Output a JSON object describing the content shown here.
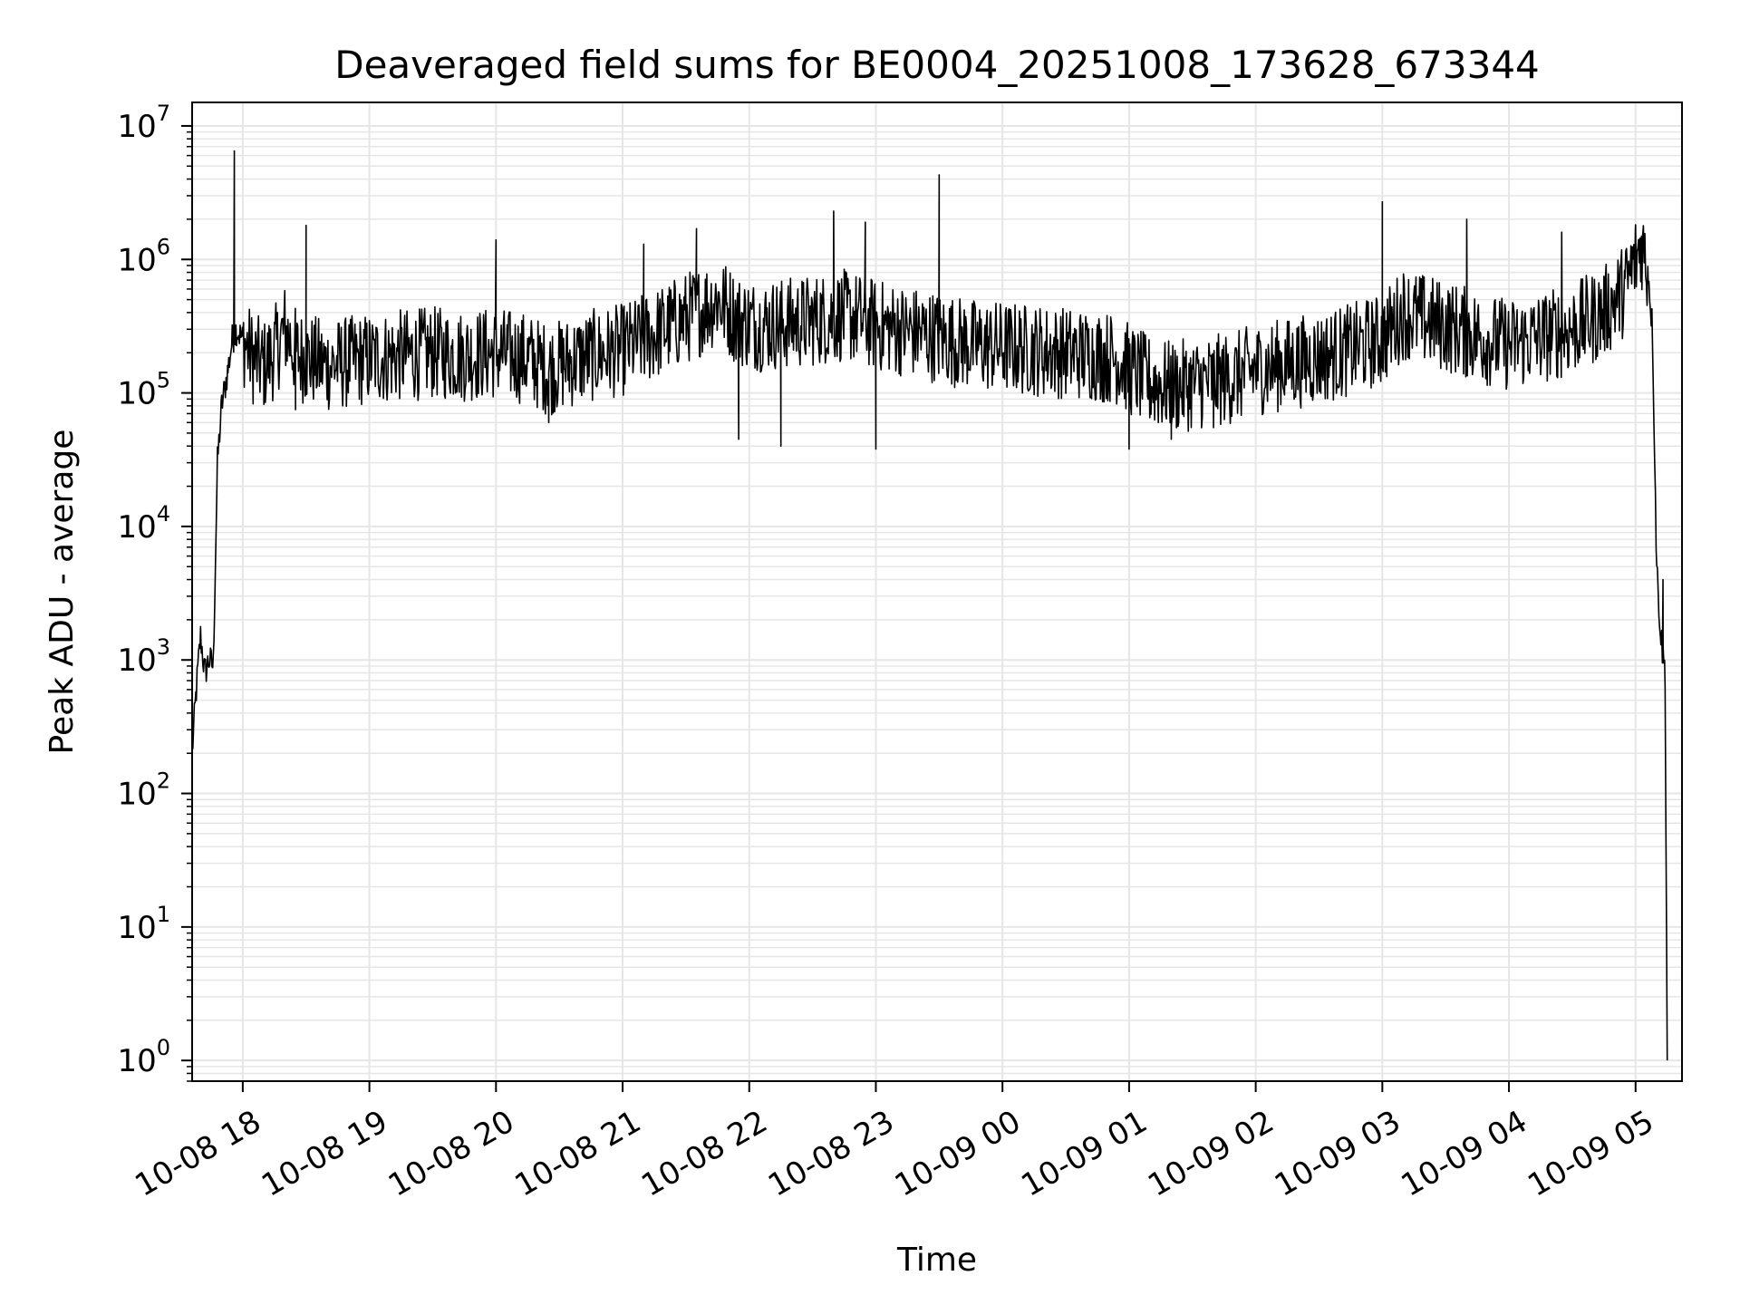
{
  "chart_data": {
    "type": "line",
    "title": "Deaveraged field sums for BE0004_20251008_173628_673344",
    "xlabel": "Time",
    "ylabel": "Peak ADU - average",
    "yscale": "log",
    "grid": true,
    "line_color": "#000000",
    "grid_color": "#e6e6e6",
    "x_ticks": [
      "10-08 18",
      "10-08 19",
      "10-08 20",
      "10-08 21",
      "10-08 22",
      "10-08 23",
      "10-09 00",
      "10-09 01",
      "10-09 02",
      "10-09 03",
      "10-09 04",
      "10-09 05"
    ],
    "y_ticks": [
      {
        "base": "10",
        "exp": "0"
      },
      {
        "base": "10",
        "exp": "1"
      },
      {
        "base": "10",
        "exp": "2"
      },
      {
        "base": "10",
        "exp": "3"
      },
      {
        "base": "10",
        "exp": "4"
      },
      {
        "base": "10",
        "exp": "5"
      },
      {
        "base": "10",
        "exp": "6"
      },
      {
        "base": "10",
        "exp": "7"
      }
    ],
    "xlim": [
      "2025-10-08 17:36",
      "2025-10-09 05:22"
    ],
    "ylim": [
      0.7,
      15000000
    ],
    "series": [
      {
        "x": [
          "2025-10-08 17:36",
          "2025-10-08 17:38",
          "2025-10-08 17:40",
          "2025-10-08 17:42",
          "2025-10-08 17:44",
          "2025-10-08 17:46",
          "2025-10-08 17:48",
          "2025-10-08 17:50",
          "2025-10-08 17:53",
          "2025-10-08 17:55",
          "2025-10-08 17:57",
          "2025-10-08 18:00",
          "2025-10-08 18:05",
          "2025-10-08 18:10",
          "2025-10-08 18:15",
          "2025-10-08 18:20",
          "2025-10-08 18:25",
          "2025-10-08 18:30",
          "2025-10-08 18:40",
          "2025-10-08 18:50",
          "2025-10-08 19:00",
          "2025-10-08 19:15",
          "2025-10-08 19:30",
          "2025-10-08 19:45",
          "2025-10-08 20:00",
          "2025-10-08 20:15",
          "2025-10-08 20:25",
          "2025-10-08 20:35",
          "2025-10-08 20:45",
          "2025-10-08 21:00",
          "2025-10-08 21:10",
          "2025-10-08 21:20",
          "2025-10-08 21:35",
          "2025-10-08 21:45",
          "2025-10-08 21:55",
          "2025-10-08 22:05",
          "2025-10-08 22:15",
          "2025-10-08 22:25",
          "2025-10-08 22:35",
          "2025-10-08 22:45",
          "2025-10-08 22:55",
          "2025-10-08 23:00",
          "2025-10-08 23:10",
          "2025-10-08 23:20",
          "2025-10-08 23:30",
          "2025-10-08 23:45",
          "2025-10-09 00:00",
          "2025-10-09 00:15",
          "2025-10-09 00:30",
          "2025-10-09 00:45",
          "2025-10-09 00:55",
          "2025-10-09 01:00",
          "2025-10-09 01:10",
          "2025-10-09 01:20",
          "2025-10-09 01:35",
          "2025-10-09 01:50",
          "2025-10-09 02:00",
          "2025-10-09 02:20",
          "2025-10-09 02:40",
          "2025-10-09 03:00",
          "2025-10-09 03:10",
          "2025-10-09 03:20",
          "2025-10-09 03:35",
          "2025-10-09 03:50",
          "2025-10-09 04:00",
          "2025-10-09 04:15",
          "2025-10-09 04:30",
          "2025-10-09 04:45",
          "2025-10-09 04:55",
          "2025-10-09 05:00",
          "2025-10-09 05:03",
          "2025-10-09 05:06",
          "2025-10-09 05:08",
          "2025-10-09 05:10",
          "2025-10-09 05:12",
          "2025-10-09 05:14",
          "2025-10-09 05:15"
        ],
        "y": [
          200,
          600,
          1500,
          800,
          1000,
          900,
          30000,
          80000,
          150000,
          250000,
          300000,
          250000,
          180000,
          160000,
          200000,
          300000,
          200000,
          180000,
          160000,
          170000,
          180000,
          190000,
          200000,
          190000,
          200000,
          180000,
          150000,
          170000,
          190000,
          210000,
          250000,
          300000,
          400000,
          500000,
          350000,
          320000,
          330000,
          340000,
          360000,
          380000,
          350000,
          320000,
          300000,
          280000,
          260000,
          230000,
          220000,
          210000,
          200000,
          190000,
          180000,
          150000,
          120000,
          110000,
          120000,
          130000,
          150000,
          170000,
          200000,
          250000,
          400000,
          350000,
          300000,
          250000,
          230000,
          260000,
          300000,
          400000,
          600000,
          1000000,
          1300000,
          800000,
          300000,
          5000,
          1500,
          800,
          1
        ]
      }
    ],
    "spikes": [
      {
        "x": "2025-10-08 17:56",
        "y": 6500000
      },
      {
        "x": "2025-10-08 18:30",
        "y": 1800000
      },
      {
        "x": "2025-10-08 20:00",
        "y": 1400000
      },
      {
        "x": "2025-10-08 21:10",
        "y": 1300000
      },
      {
        "x": "2025-10-08 21:35",
        "y": 1700000
      },
      {
        "x": "2025-10-08 22:40",
        "y": 2300000
      },
      {
        "x": "2025-10-08 22:55",
        "y": 1900000
      },
      {
        "x": "2025-10-08 23:30",
        "y": 4300000
      },
      {
        "x": "2025-10-09 03:00",
        "y": 2700000
      },
      {
        "x": "2025-10-09 03:40",
        "y": 2000000
      },
      {
        "x": "2025-10-09 04:25",
        "y": 1600000
      },
      {
        "x": "2025-10-09 05:13",
        "y": 4000
      }
    ],
    "dips": [
      {
        "x": "2025-10-08 18:25",
        "y": 75000
      },
      {
        "x": "2025-10-08 20:25",
        "y": 60000
      },
      {
        "x": "2025-10-08 21:55",
        "y": 45000
      },
      {
        "x": "2025-10-08 22:15",
        "y": 40000
      },
      {
        "x": "2025-10-08 23:00",
        "y": 38000
      },
      {
        "x": "2025-10-09 01:00",
        "y": 38000
      },
      {
        "x": "2025-10-09 01:20",
        "y": 45000
      },
      {
        "x": "2025-10-09 01:40",
        "y": 55000
      }
    ]
  }
}
